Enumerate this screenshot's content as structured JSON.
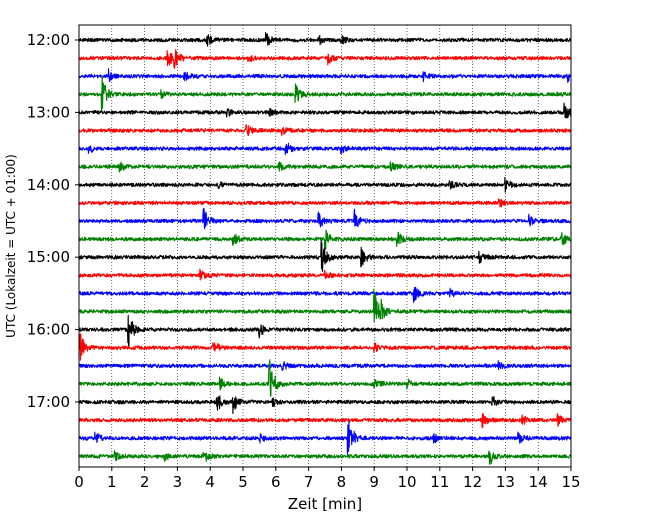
{
  "chart_data": {
    "type": "line",
    "xlabel": "Zeit  [min]",
    "ylabel": "UTC (Lokalzeit = UTC + 01:00)",
    "xlim": [
      0,
      15
    ],
    "x_ticks": [
      0,
      1,
      2,
      3,
      4,
      5,
      6,
      7,
      8,
      9,
      10,
      11,
      12,
      13,
      14,
      15
    ],
    "y_ticks": [
      "12:00",
      "13:00",
      "14:00",
      "15:00",
      "16:00",
      "17:00"
    ],
    "grid": {
      "vertical_dotted": true
    },
    "trace_colors": [
      "#000000",
      "#ff0000",
      "#0000ff",
      "#008000"
    ],
    "traces": [
      {
        "start": "12:00",
        "color": "#000000",
        "events": [
          [
            3.9,
            6
          ],
          [
            5.7,
            8
          ],
          [
            7.3,
            5
          ],
          [
            8.0,
            4
          ]
        ]
      },
      {
        "start": "12:15",
        "color": "#ff0000",
        "events": [
          [
            2.7,
            12
          ],
          [
            2.9,
            8
          ],
          [
            5.1,
            8
          ],
          [
            7.6,
            5
          ]
        ]
      },
      {
        "start": "12:30",
        "color": "#0000ff",
        "events": [
          [
            0.9,
            6
          ],
          [
            3.2,
            5
          ],
          [
            10.5,
            4
          ],
          [
            14.9,
            5
          ]
        ]
      },
      {
        "start": "12:45",
        "color": "#008000",
        "events": [
          [
            0.7,
            18
          ],
          [
            2.5,
            4
          ],
          [
            6.6,
            10
          ]
        ]
      },
      {
        "start": "13:00",
        "color": "#000000",
        "events": [
          [
            4.5,
            4
          ],
          [
            5.8,
            4
          ],
          [
            14.8,
            9
          ]
        ]
      },
      {
        "start": "13:15",
        "color": "#ff0000",
        "events": [
          [
            5.1,
            7
          ],
          [
            6.2,
            4
          ]
        ]
      },
      {
        "start": "13:30",
        "color": "#0000ff",
        "events": [
          [
            0.3,
            4
          ],
          [
            6.3,
            7
          ],
          [
            8.0,
            4
          ]
        ]
      },
      {
        "start": "13:45",
        "color": "#008000",
        "events": [
          [
            1.2,
            7
          ],
          [
            6.1,
            4
          ],
          [
            9.5,
            4
          ]
        ]
      },
      {
        "start": "14:00",
        "color": "#000000",
        "events": [
          [
            4.2,
            4
          ],
          [
            11.3,
            4
          ],
          [
            13.0,
            6
          ]
        ]
      },
      {
        "start": "14:15",
        "color": "#ff0000",
        "events": [
          [
            12.8,
            4
          ]
        ]
      },
      {
        "start": "14:30",
        "color": "#0000ff",
        "events": [
          [
            3.8,
            14
          ],
          [
            7.3,
            8
          ],
          [
            8.4,
            10
          ],
          [
            13.7,
            6
          ]
        ]
      },
      {
        "start": "14:45",
        "color": "#008000",
        "events": [
          [
            4.7,
            6
          ],
          [
            7.5,
            10
          ],
          [
            9.7,
            8
          ],
          [
            14.7,
            8
          ]
        ]
      },
      {
        "start": "15:00",
        "color": "#000000",
        "events": [
          [
            7.4,
            16
          ],
          [
            8.6,
            10
          ],
          [
            12.2,
            5
          ]
        ]
      },
      {
        "start": "15:15",
        "color": "#ff0000",
        "events": [
          [
            3.7,
            5
          ],
          [
            7.5,
            4
          ]
        ]
      },
      {
        "start": "15:30",
        "color": "#0000ff",
        "events": [
          [
            10.2,
            9
          ],
          [
            11.3,
            4
          ]
        ]
      },
      {
        "start": "15:45",
        "color": "#008000",
        "events": [
          [
            9.0,
            22
          ],
          [
            9.2,
            8
          ]
        ]
      },
      {
        "start": "16:00",
        "color": "#000000",
        "events": [
          [
            1.5,
            20
          ],
          [
            5.5,
            7
          ]
        ]
      },
      {
        "start": "16:15",
        "color": "#ff0000",
        "events": [
          [
            0.05,
            13
          ],
          [
            4.1,
            9
          ],
          [
            9.0,
            4
          ]
        ]
      },
      {
        "start": "16:30",
        "color": "#0000ff",
        "events": [
          [
            6.2,
            4
          ],
          [
            12.8,
            4
          ]
        ]
      },
      {
        "start": "16:45",
        "color": "#008000",
        "events": [
          [
            4.3,
            6
          ],
          [
            5.8,
            28
          ],
          [
            9.0,
            5
          ],
          [
            10.0,
            5
          ]
        ]
      },
      {
        "start": "17:00",
        "color": "#000000",
        "events": [
          [
            4.2,
            11
          ],
          [
            4.7,
            10
          ],
          [
            5.9,
            4
          ],
          [
            12.6,
            5
          ]
        ]
      },
      {
        "start": "17:15",
        "color": "#ff0000",
        "events": [
          [
            12.3,
            7
          ],
          [
            13.5,
            5
          ],
          [
            14.6,
            5
          ]
        ]
      },
      {
        "start": "17:30",
        "color": "#0000ff",
        "events": [
          [
            0.5,
            5
          ],
          [
            5.5,
            4
          ],
          [
            8.2,
            24
          ],
          [
            10.8,
            6
          ],
          [
            13.4,
            6
          ]
        ]
      },
      {
        "start": "17:45",
        "color": "#008000",
        "events": [
          [
            1.1,
            5
          ],
          [
            2.6,
            4
          ],
          [
            3.8,
            6
          ],
          [
            12.5,
            10
          ]
        ]
      }
    ]
  }
}
